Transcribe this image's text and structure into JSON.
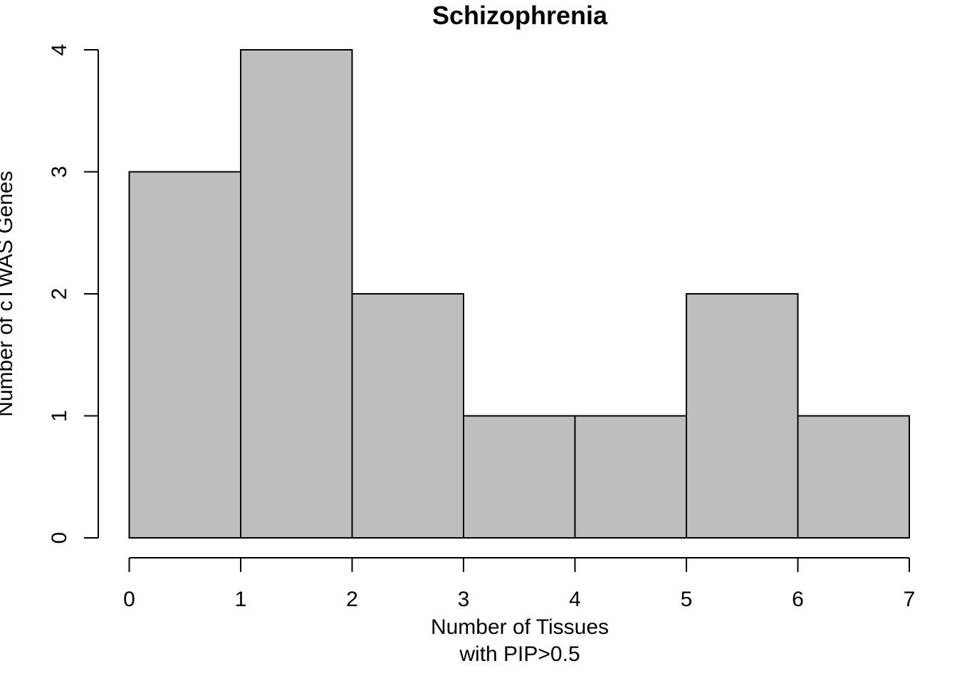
{
  "chart_data": {
    "type": "bar",
    "title": "Schizophrenia",
    "xlabel": [
      "Number of Tissues",
      "with PIP>0.5"
    ],
    "ylabel": "Number of cTWAS Genes",
    "bins": [
      [
        0,
        1
      ],
      [
        1,
        2
      ],
      [
        2,
        3
      ],
      [
        3,
        4
      ],
      [
        4,
        5
      ],
      [
        5,
        6
      ],
      [
        6,
        7
      ]
    ],
    "values": [
      3,
      4,
      2,
      1,
      1,
      2,
      1
    ],
    "xlim": [
      0,
      7
    ],
    "ylim": [
      0,
      4
    ],
    "xticks": [
      0,
      1,
      2,
      3,
      4,
      5,
      6,
      7
    ],
    "yticks": [
      0,
      1,
      2,
      3,
      4
    ],
    "grid": false,
    "bar_color": "#bebebe",
    "edge_color": "#000000"
  }
}
